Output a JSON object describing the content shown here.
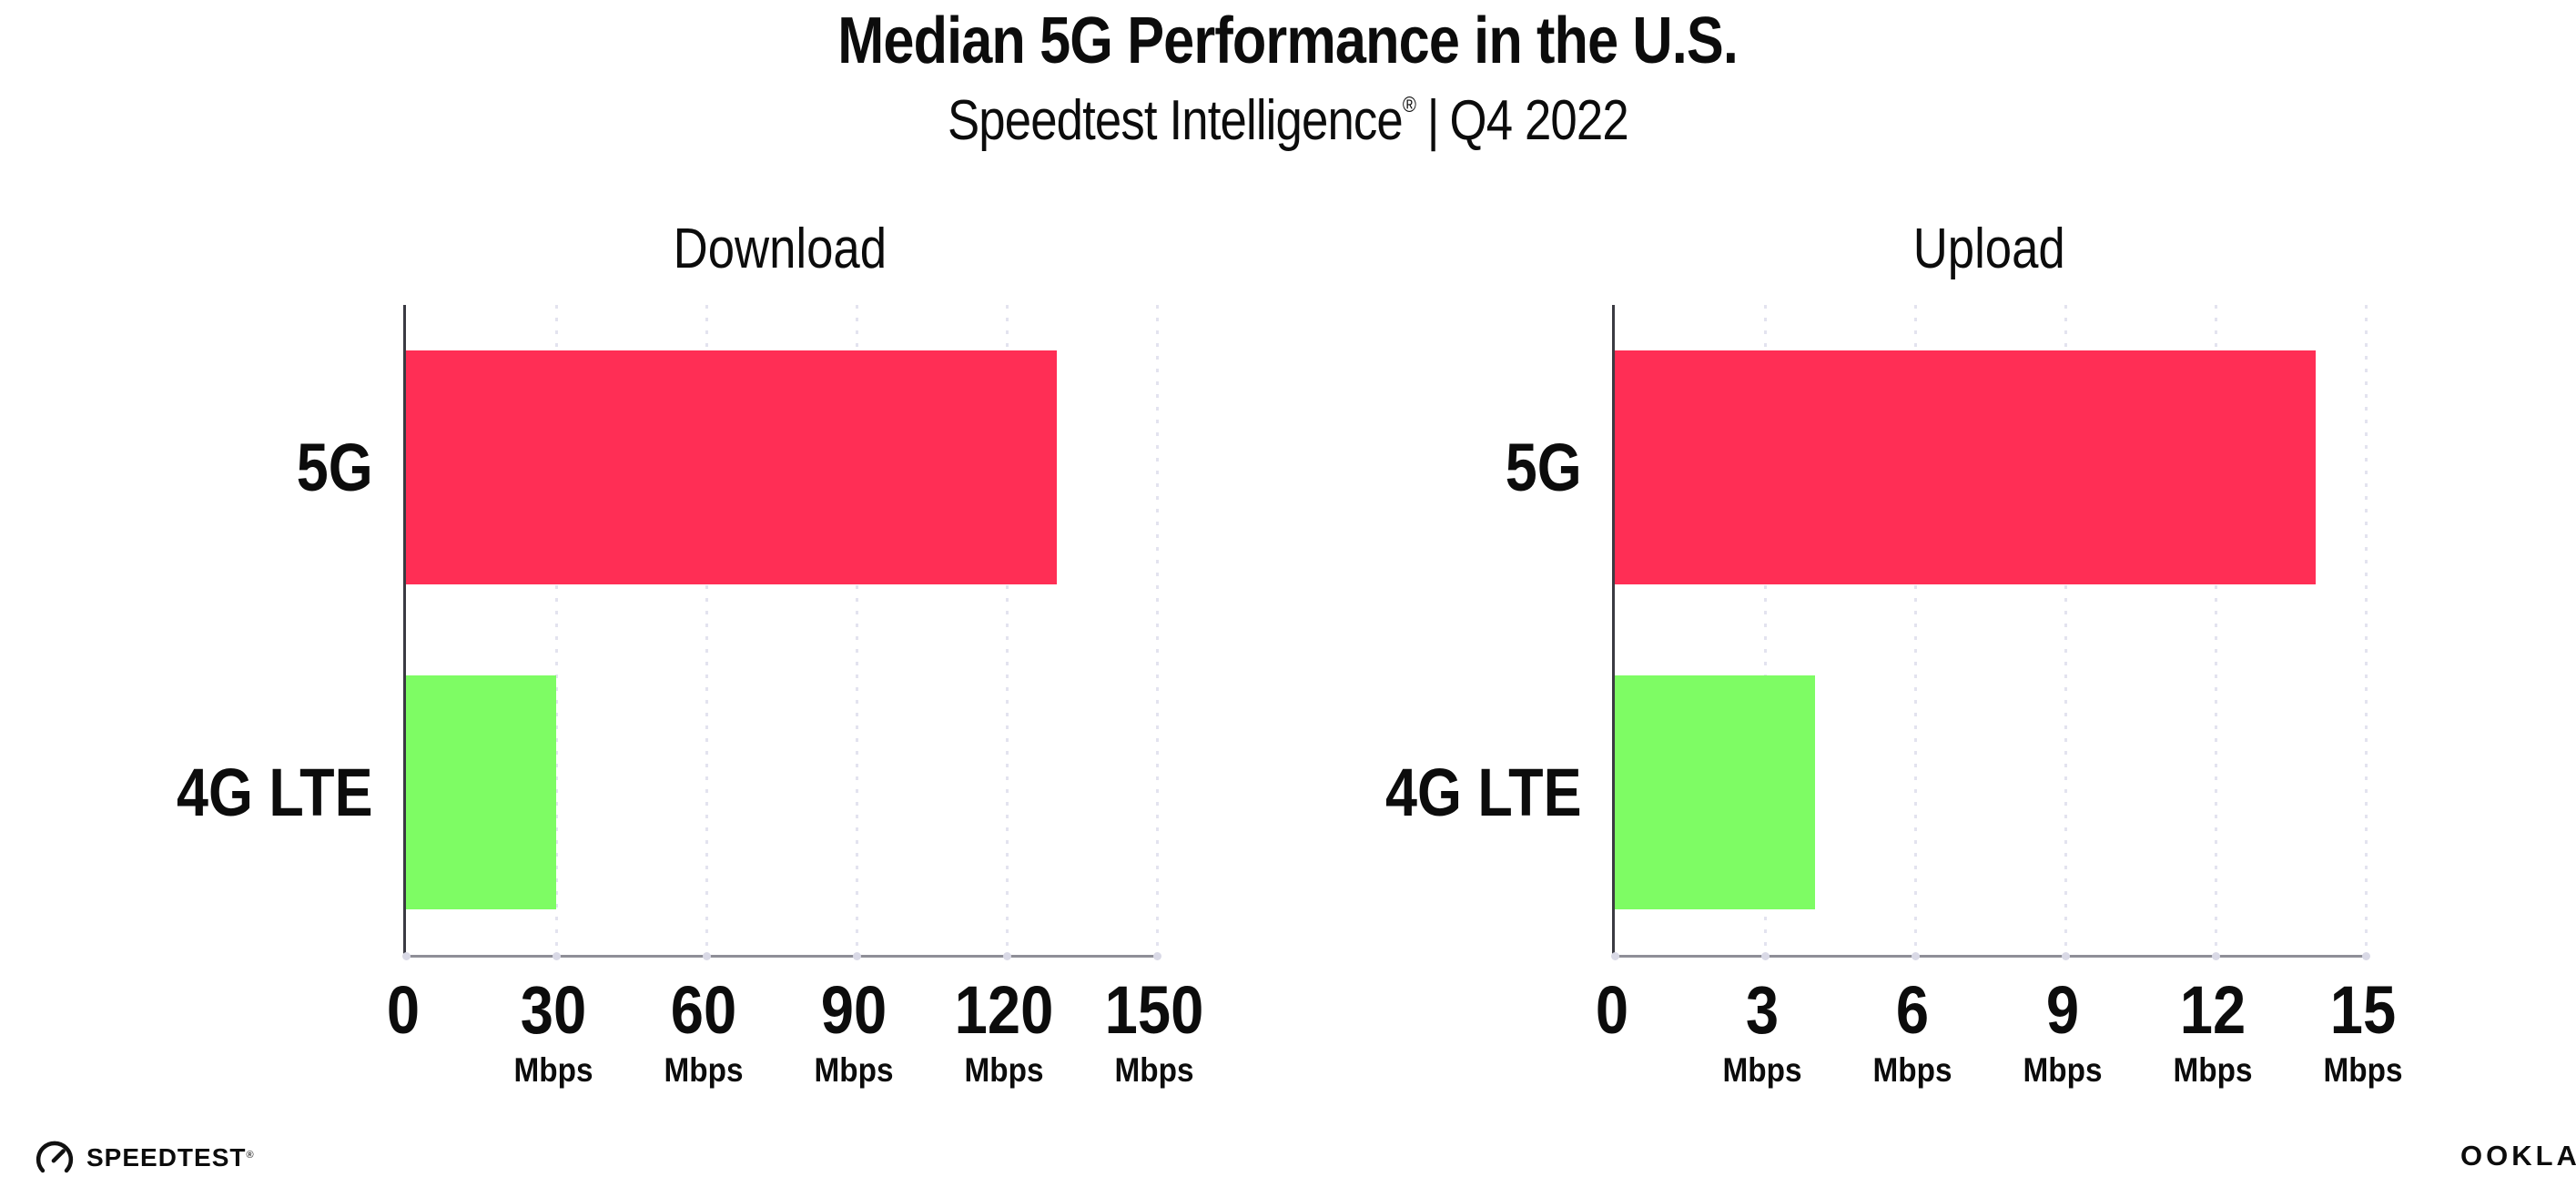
{
  "header": {
    "title": "Median 5G Performance in the U.S.",
    "subtitle_brand": "Speedtest Intelligence",
    "subtitle_registered": "®",
    "subtitle_separator": "|",
    "subtitle_period": "Q4 2022"
  },
  "colors": {
    "bar_5g": "#ff2e55",
    "bar_4g_lte": "#7efc64",
    "gridline": "#e3e3ef",
    "y_axis": "#3a3a42",
    "x_axis": "#8f8f97",
    "text": "#0c0c0c",
    "background": "#ffffff"
  },
  "chart_data": [
    {
      "type": "bar",
      "orientation": "horizontal",
      "title": "Download",
      "categories": [
        "5G",
        "4G LTE"
      ],
      "values": [
        130,
        30
      ],
      "unit": "Mbps",
      "xlim": [
        0,
        150
      ],
      "xticks": [
        0,
        30,
        60,
        90,
        120,
        150
      ],
      "bar_colors": [
        "#ff2e55",
        "#7efc64"
      ],
      "grid": "vertical-dotted",
      "legend": "none"
    },
    {
      "type": "bar",
      "orientation": "horizontal",
      "title": "Upload",
      "categories": [
        "5G",
        "4G LTE"
      ],
      "values": [
        14,
        4
      ],
      "unit": "Mbps",
      "xlim": [
        0,
        15
      ],
      "xticks": [
        0,
        3,
        6,
        9,
        12,
        15
      ],
      "bar_colors": [
        "#ff2e55",
        "#7efc64"
      ],
      "grid": "vertical-dotted",
      "legend": "none"
    }
  ],
  "footer": {
    "speedtest_logo_text": "SPEEDTEST",
    "speedtest_trademark": "®",
    "ookla_logo_text": "OOKLA",
    "ookla_trademark": "®"
  }
}
